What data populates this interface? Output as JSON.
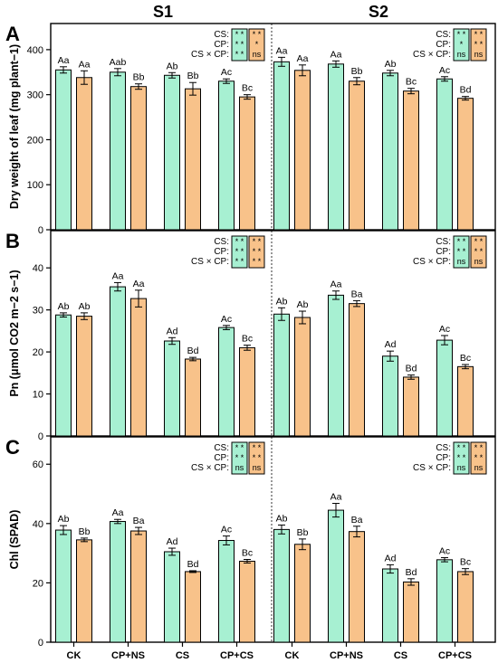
{
  "figure": {
    "col_titles": [
      "S1",
      "S2"
    ],
    "categories": [
      "CK",
      "CP+NS",
      "CS",
      "CP+CS"
    ],
    "colors": {
      "series1": "#a7f0d2",
      "series2": "#f8c28a"
    }
  },
  "chart_data": [
    {
      "type": "bar",
      "panel_label": "A",
      "ylabel": "Dry weight of leaf (mg plant−1)",
      "ylim": [
        0,
        450
      ],
      "yticks": [
        0,
        100,
        200,
        300,
        400
      ],
      "groups": [
        {
          "name": "S1",
          "categories": [
            "CK",
            "CP+NS",
            "CS",
            "CP+CS"
          ],
          "series": [
            {
              "values": [
                355,
                350,
                343,
                330
              ],
              "errors": [
                7,
                8,
                6,
                5
              ],
              "labels": [
                "Aa",
                "Aab",
                "Ab",
                "Ac"
              ]
            },
            {
              "values": [
                338,
                318,
                313,
                295
              ],
              "errors": [
                15,
                6,
                14,
                5
              ],
              "labels": [
                "Aa",
                "Bb",
                "Bb",
                "Bc"
              ]
            }
          ],
          "significance": {
            "rows": [
              "CS:",
              "CP:",
              "CS × CP:"
            ],
            "col1": [
              "* *",
              "* *",
              "* *"
            ],
            "col2": [
              "* *",
              "*",
              "ns"
            ]
          }
        },
        {
          "name": "S2",
          "categories": [
            "CK",
            "CP+NS",
            "CS",
            "CP+CS"
          ],
          "series": [
            {
              "values": [
                373,
                368,
                348,
                335
              ],
              "errors": [
                10,
                7,
                6,
                5
              ],
              "labels": [
                "Aa",
                "Aa",
                "Ab",
                "Ac"
              ]
            },
            {
              "values": [
                354,
                330,
                308,
                292
              ],
              "errors": [
                12,
                8,
                6,
                4
              ],
              "labels": [
                "Aa",
                "Bb",
                "Bc",
                "Bd"
              ]
            }
          ],
          "significance": {
            "rows": [
              "CS:",
              "CP:",
              "CS × CP:"
            ],
            "col1": [
              "* *",
              "*",
              "ns"
            ],
            "col2": [
              "* *",
              "* *",
              "ns"
            ]
          }
        }
      ]
    },
    {
      "type": "bar",
      "panel_label": "B",
      "ylabel": "Pn (μmol CO2 m−2 s−1)",
      "ylim": [
        0,
        48
      ],
      "yticks": [
        0,
        10,
        20,
        30,
        40
      ],
      "groups": [
        {
          "name": "S1",
          "categories": [
            "CK",
            "CP+NS",
            "CS",
            "CP+CS"
          ],
          "series": [
            {
              "values": [
                28.8,
                35.5,
                22.6,
                25.8
              ],
              "errors": [
                0.5,
                1.0,
                0.8,
                0.5
              ],
              "labels": [
                "Ab",
                "Aa",
                "Ad",
                "Ac"
              ]
            },
            {
              "values": [
                28.5,
                32.7,
                18.3,
                21.0
              ],
              "errors": [
                0.8,
                2.0,
                0.4,
                0.6
              ],
              "labels": [
                "Ab",
                "Aa",
                "Bd",
                "Bc"
              ]
            }
          ],
          "significance": {
            "rows": [
              "CS:",
              "CP:",
              "CS × CP:"
            ],
            "col1": [
              "* *",
              "* *",
              "* *"
            ],
            "col2": [
              "* *",
              "* *",
              "* *"
            ]
          }
        },
        {
          "name": "S2",
          "categories": [
            "CK",
            "CP+NS",
            "CS",
            "CP+CS"
          ],
          "series": [
            {
              "values": [
                29.0,
                33.5,
                19.0,
                22.8
              ],
              "errors": [
                1.5,
                1.0,
                1.2,
                1.1
              ],
              "labels": [
                "Ab",
                "Aa",
                "Ad",
                "Ac"
              ]
            },
            {
              "values": [
                28.2,
                31.5,
                14.0,
                16.5
              ],
              "errors": [
                1.5,
                0.7,
                0.5,
                0.5
              ],
              "labels": [
                "Ab",
                "Ba",
                "Bd",
                "Bc"
              ]
            }
          ],
          "significance": {
            "rows": [
              "CS:",
              "CP:",
              "CS × CP:"
            ],
            "col1": [
              "* *",
              "* *",
              "ns"
            ],
            "col2": [
              "* *",
              "* *",
              "ns"
            ]
          }
        }
      ]
    },
    {
      "type": "bar",
      "panel_label": "C",
      "ylabel": "Chl (SPAD)",
      "ylim": [
        0,
        68
      ],
      "yticks": [
        0,
        20,
        40,
        60
      ],
      "groups": [
        {
          "name": "S1",
          "categories": [
            "CK",
            "CP+NS",
            "CS",
            "CP+CS"
          ],
          "series": [
            {
              "values": [
                37.8,
                40.7,
                30.5,
                34.3
              ],
              "errors": [
                1.5,
                0.7,
                1.2,
                1.5
              ],
              "labels": [
                "Ab",
                "Aa",
                "Ad",
                "Ac"
              ]
            },
            {
              "values": [
                34.5,
                37.5,
                23.8,
                27.3
              ],
              "errors": [
                0.6,
                1.2,
                0.3,
                0.6
              ],
              "labels": [
                "Bb",
                "Ba",
                "Bd",
                "Bc"
              ]
            }
          ],
          "significance": {
            "rows": [
              "CS:",
              "CP:",
              "CS × CP:"
            ],
            "col1": [
              "* *",
              "* *",
              "ns"
            ],
            "col2": [
              "* *",
              "* *",
              "ns"
            ]
          }
        },
        {
          "name": "S2",
          "categories": [
            "CK",
            "CP+NS",
            "CS",
            "CP+CS"
          ],
          "series": [
            {
              "values": [
                38.0,
                44.5,
                24.7,
                27.8
              ],
              "errors": [
                1.5,
                2.3,
                1.4,
                0.7
              ],
              "labels": [
                "Ab",
                "Aa",
                "Ad",
                "Ac"
              ]
            },
            {
              "values": [
                33.0,
                37.3,
                20.3,
                23.8
              ],
              "errors": [
                1.8,
                1.8,
                1.1,
                1.0
              ],
              "labels": [
                "Bb",
                "Ba",
                "Bd",
                "Bc"
              ]
            }
          ],
          "significance": {
            "rows": [
              "CS:",
              "CP:",
              "CS × CP:"
            ],
            "col1": [
              "* *",
              "* *",
              "ns"
            ],
            "col2": [
              "* *",
              "* *",
              "ns"
            ]
          }
        }
      ]
    }
  ]
}
